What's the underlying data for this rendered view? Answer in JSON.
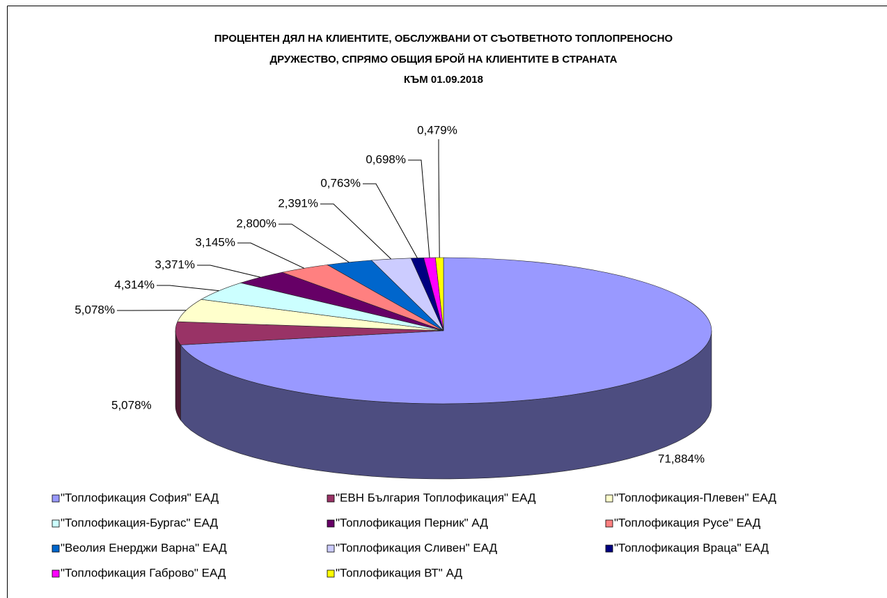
{
  "chart_data": {
    "type": "pie",
    "title": [
      "ПРОЦЕНТЕН ДЯЛ НА КЛИЕНТИТЕ, ОБСЛУЖВАНИ ОТ СЪОТВЕТНОТО ТОПЛОПРЕНОСНО",
      "ДРУЖЕСТВО, СПРЯМО ОБЩИЯ БРОЙ НА КЛИЕНТИТЕ В СТРАНАТА",
      "КЪМ 01.09.2018"
    ],
    "categories": [
      "\"Топлофикация София\" ЕАД",
      "\"ЕВН България Топлофикация\" ЕАД",
      "\"Топлофикация-Плевен\" ЕАД",
      "\"Топлофикация-Бургас\" ЕАД",
      "\"Топлофикация Перник\" АД",
      "\"Топлофикация Русе\" ЕАД",
      "\"Веолия Енерджи Варна\" ЕАД",
      "\"Топлофикация Сливен\" ЕАД",
      "\"Топлофикация Враца\" ЕАД",
      "\"Топлофикация Габрово\" ЕАД",
      "\"Топлофикация ВТ\" АД"
    ],
    "values": [
      71.884,
      5.078,
      5.078,
      4.314,
      3.371,
      3.145,
      2.8,
      2.391,
      0.763,
      0.698,
      0.479
    ],
    "value_labels": [
      "71,884%",
      "5,078%",
      "5,078%",
      "4,314%",
      "3,371%",
      "3,145%",
      "2,800%",
      "2,391%",
      "0,763%",
      "0,698%",
      "0,479%"
    ],
    "colors": [
      "#9999ff",
      "#993366",
      "#ffffcc",
      "#ccffff",
      "#660066",
      "#ff8080",
      "#0066cc",
      "#ccccff",
      "#000080",
      "#ff00ff",
      "#ffff00"
    ],
    "legend": "bottom"
  }
}
